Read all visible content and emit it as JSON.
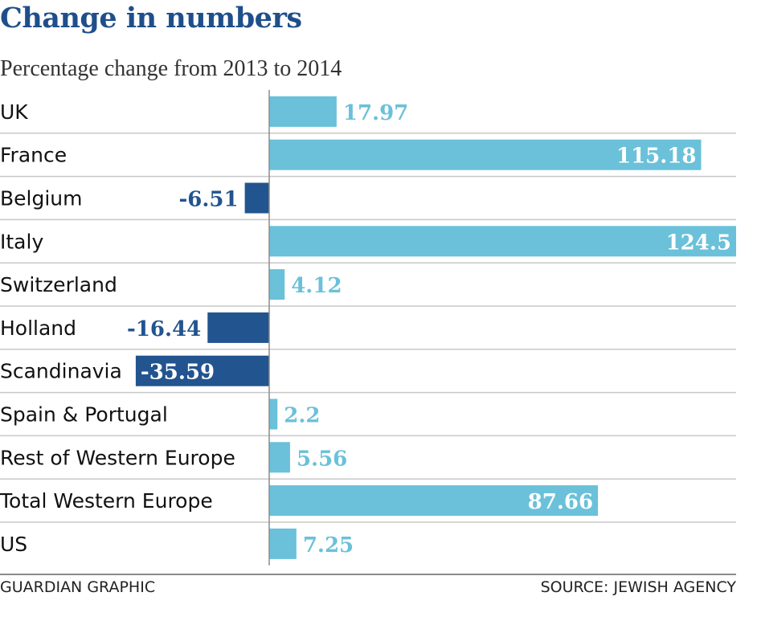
{
  "colors": {
    "positive": "#6ac1d9",
    "negative": "#22548f",
    "title": "#1f4f8b",
    "label_on_bar": "#ffffff",
    "separator": "#c8c8c8"
  },
  "chart_data": {
    "type": "bar",
    "orientation": "horizontal",
    "title": "Change in numbers",
    "subtitle": "Percentage change from 2013 to 2014",
    "categories": [
      "UK",
      "France",
      "Belgium",
      "Italy",
      "Switzerland",
      "Holland",
      "Scandinavia",
      "Spain & Portugal",
      "Rest of Western Europe",
      "Total Western Europe",
      "US"
    ],
    "values": [
      17.97,
      115.18,
      -6.51,
      124.5,
      4.12,
      -16.44,
      -35.59,
      2.2,
      5.56,
      87.66,
      7.25
    ],
    "value_labels": [
      "17.97",
      "115.18",
      "-6.51",
      "124.5",
      "4.12",
      "-16.44",
      "-35.59",
      "2.2",
      "5.56",
      "87.66",
      "7.25"
    ],
    "xlim": [
      -72,
      124.5
    ],
    "grid": false,
    "legend": "none"
  },
  "footer": {
    "left": "GUARDIAN GRAPHIC",
    "right": "SOURCE: JEWISH AGENCY"
  }
}
